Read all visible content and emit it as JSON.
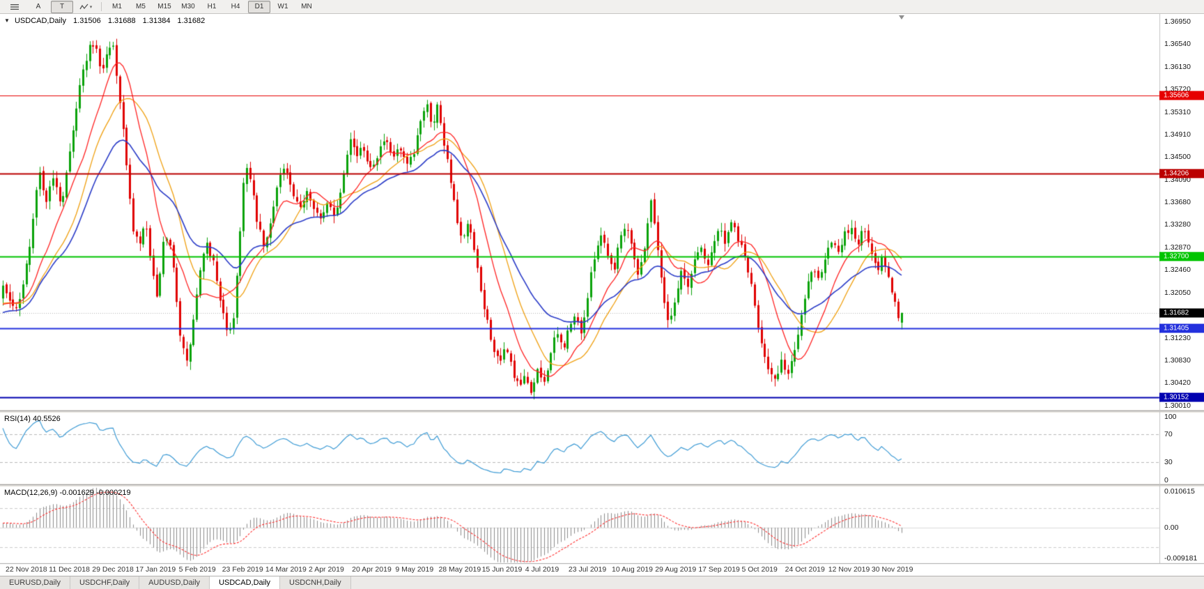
{
  "toolbar": {
    "icons": [
      {
        "name": "menu-icon",
        "glyph": "≡"
      },
      {
        "name": "polyline-tool-icon",
        "glyph": "⌁"
      },
      {
        "name": "dropdown-arrow-icon",
        "glyph": "▾"
      }
    ],
    "buttons": [
      {
        "label": "A",
        "name": "cursor-tool",
        "pressed": false
      },
      {
        "label": "T",
        "name": "text-tool",
        "pressed": true
      }
    ],
    "timeframes": [
      {
        "label": "M1"
      },
      {
        "label": "M5"
      },
      {
        "label": "M15"
      },
      {
        "label": "M30"
      },
      {
        "label": "H1"
      },
      {
        "label": "H4"
      },
      {
        "label": "D1",
        "active": true
      },
      {
        "label": "W1"
      },
      {
        "label": "MN"
      }
    ]
  },
  "header": {
    "collapse_arrow": "▼",
    "symbol": "USDCAD,Daily",
    "open": "1.31506",
    "high": "1.31688",
    "low": "1.31384",
    "close": "1.31682"
  },
  "tabs": [
    {
      "label": "EURUSD,Daily"
    },
    {
      "label": "USDCHF,Daily"
    },
    {
      "label": "AUDUSD,Daily"
    },
    {
      "label": "USDCAD,Daily",
      "active": true
    },
    {
      "label": "USDCNH,Daily"
    }
  ],
  "chart_data": {
    "type": "candlestick",
    "symbol": "USDCAD",
    "timeframe": "Daily",
    "ohlc_display": {
      "open": 1.31506,
      "high": 1.31688,
      "low": 1.31384,
      "close": 1.31682
    },
    "num_candles": 270,
    "candle_end_frac": 0.78,
    "candle_colors": {
      "up": "#0aa20a",
      "down": "#e00000"
    },
    "y_axis": {
      "range": [
        1.2993,
        1.3706
      ],
      "ticks": [
        "1.36950",
        "1.36540",
        "1.36130",
        "1.35720",
        "1.35310",
        "1.34910",
        "1.34500",
        "1.34090",
        "1.33680",
        "1.33280",
        "1.32870",
        "1.32460",
        "1.32050",
        "1.31640",
        "1.31230",
        "1.30830",
        "1.30420",
        "1.30010"
      ]
    },
    "x_axis": {
      "labels": [
        "22 Nov 2018",
        "11 Dec 2018",
        "29 Dec 2018",
        "17 Jan 2019",
        "5 Feb 2019",
        "23 Feb 2019",
        "14 Mar 2019",
        "2 Apr 2019",
        "20 Apr 2019",
        "9 May 2019",
        "28 May 2019",
        "15 Jun 2019",
        "4 Jul 2019",
        "23 Jul 2019",
        "10 Aug 2019",
        "29 Aug 2019",
        "17 Sep 2019",
        "5 Oct 2019",
        "24 Oct 2019",
        "12 Nov 2019",
        "30 Nov 2019"
      ]
    },
    "horizontal_levels": [
      {
        "value": 1.35606,
        "label": "1.35606",
        "color": "#e60000",
        "width": 1
      },
      {
        "value": 1.34206,
        "label": "1.34206",
        "color": "#bb0000",
        "width": 2
      },
      {
        "value": 1.327,
        "label": "1.32700",
        "color": "#00c400",
        "width": 2
      },
      {
        "value": 1.31405,
        "label": "1.31405",
        "color": "#2330dd",
        "width": 2
      },
      {
        "value": 1.30152,
        "label": "1.30152",
        "color": "#0000b0",
        "width": 2
      }
    ],
    "current_price": {
      "value": 1.31682,
      "label": "1.31682",
      "tag_color": "#000000"
    },
    "moving_averages": [
      {
        "type": "sma",
        "period": 21,
        "color": "#f0a010",
        "width": 1.3,
        "name": "ma-orange"
      },
      {
        "type": "sma",
        "period": 13,
        "color": "#ff2222",
        "width": 1.3,
        "name": "ma-red"
      },
      {
        "type": "ema",
        "period": 34,
        "color": "#2b3cc8",
        "width": 1.6,
        "name": "ma-blue"
      }
    ],
    "indicators": {
      "rsi": {
        "label": "RSI(14) 40.5526",
        "period": 14,
        "value": 40.5526,
        "color": "#3d9bd5",
        "levels": [
          70,
          30
        ],
        "scale_labels": [
          {
            "text": "100",
            "value": 100
          },
          {
            "text": "70",
            "value": 70
          },
          {
            "text": "30",
            "value": 30
          },
          {
            "text": "0",
            "value": 0
          }
        ],
        "range": [
          0,
          100
        ]
      },
      "macd": {
        "label": "MACD(12,26,9) -0.001629 -0.000219",
        "fast": 12,
        "slow": 26,
        "signal": 9,
        "value": -0.001629,
        "signal_value": -0.000219,
        "histogram_color": "#8c8c8c",
        "signal_color": "#ff3030",
        "scale_labels": [
          {
            "text": "0.010615",
            "value": 0.010615
          },
          {
            "text": "0.00",
            "value": 0
          },
          {
            "text": "-0.009181",
            "value": -0.009181
          }
        ],
        "range": [
          -0.009181,
          0.010615
        ],
        "grid_levels": [
          0.005,
          -0.005
        ]
      }
    },
    "price_waypoints": [
      [
        0.0,
        1.3215
      ],
      [
        0.008,
        1.3186
      ],
      [
        0.016,
        1.317
      ],
      [
        0.024,
        1.3232
      ],
      [
        0.033,
        1.333
      ],
      [
        0.04,
        1.3426
      ],
      [
        0.048,
        1.3372
      ],
      [
        0.057,
        1.3416
      ],
      [
        0.065,
        1.3362
      ],
      [
        0.072,
        1.3442
      ],
      [
        0.08,
        1.3522
      ],
      [
        0.088,
        1.36
      ],
      [
        0.096,
        1.3648
      ],
      [
        0.103,
        1.3656
      ],
      [
        0.11,
        1.3598
      ],
      [
        0.116,
        1.3642
      ],
      [
        0.123,
        1.365
      ],
      [
        0.13,
        1.3552
      ],
      [
        0.138,
        1.3432
      ],
      [
        0.145,
        1.3312
      ],
      [
        0.152,
        1.3292
      ],
      [
        0.159,
        1.333
      ],
      [
        0.165,
        1.3252
      ],
      [
        0.171,
        1.3192
      ],
      [
        0.178,
        1.329
      ],
      [
        0.184,
        1.3302
      ],
      [
        0.191,
        1.3232
      ],
      [
        0.197,
        1.3132
      ],
      [
        0.204,
        1.3072
      ],
      [
        0.211,
        1.3142
      ],
      [
        0.218,
        1.3232
      ],
      [
        0.226,
        1.3292
      ],
      [
        0.234,
        1.3262
      ],
      [
        0.242,
        1.3192
      ],
      [
        0.249,
        1.3132
      ],
      [
        0.256,
        1.3152
      ],
      [
        0.263,
        1.3292
      ],
      [
        0.269,
        1.3442
      ],
      [
        0.276,
        1.3402
      ],
      [
        0.283,
        1.3332
      ],
      [
        0.291,
        1.3282
      ],
      [
        0.298,
        1.3332
      ],
      [
        0.306,
        1.3412
      ],
      [
        0.314,
        1.3432
      ],
      [
        0.322,
        1.3382
      ],
      [
        0.33,
        1.3352
      ],
      [
        0.338,
        1.3392
      ],
      [
        0.346,
        1.3362
      ],
      [
        0.354,
        1.3332
      ],
      [
        0.362,
        1.3372
      ],
      [
        0.37,
        1.3342
      ],
      [
        0.378,
        1.3412
      ],
      [
        0.386,
        1.3492
      ],
      [
        0.393,
        1.3452
      ],
      [
        0.401,
        1.3466
      ],
      [
        0.409,
        1.3432
      ],
      [
        0.417,
        1.3456
      ],
      [
        0.425,
        1.3482
      ],
      [
        0.433,
        1.3446
      ],
      [
        0.441,
        1.3466
      ],
      [
        0.449,
        1.3432
      ],
      [
        0.457,
        1.3452
      ],
      [
        0.465,
        1.3522
      ],
      [
        0.472,
        1.355
      ],
      [
        0.478,
        1.3502
      ],
      [
        0.484,
        1.3548
      ],
      [
        0.49,
        1.3482
      ],
      [
        0.497,
        1.3422
      ],
      [
        0.504,
        1.3342
      ],
      [
        0.511,
        1.3292
      ],
      [
        0.518,
        1.3332
      ],
      [
        0.525,
        1.3272
      ],
      [
        0.532,
        1.3202
      ],
      [
        0.539,
        1.3152
      ],
      [
        0.546,
        1.3102
      ],
      [
        0.553,
        1.3072
      ],
      [
        0.56,
        1.3112
      ],
      [
        0.567,
        1.3062
      ],
      [
        0.574,
        1.3032
      ],
      [
        0.581,
        1.3052
      ],
      [
        0.588,
        1.3026
      ],
      [
        0.595,
        1.3062
      ],
      [
        0.602,
        1.3042
      ],
      [
        0.609,
        1.3092
      ],
      [
        0.616,
        1.3132
      ],
      [
        0.623,
        1.3102
      ],
      [
        0.63,
        1.3142
      ],
      [
        0.637,
        1.3162
      ],
      [
        0.644,
        1.3132
      ],
      [
        0.651,
        1.3202
      ],
      [
        0.658,
        1.3272
      ],
      [
        0.665,
        1.3312
      ],
      [
        0.672,
        1.3282
      ],
      [
        0.679,
        1.3242
      ],
      [
        0.686,
        1.3302
      ],
      [
        0.693,
        1.3332
      ],
      [
        0.7,
        1.3292
      ],
      [
        0.707,
        1.3232
      ],
      [
        0.714,
        1.3292
      ],
      [
        0.721,
        1.3372
      ],
      [
        0.727,
        1.3312
      ],
      [
        0.734,
        1.3202
      ],
      [
        0.741,
        1.3152
      ],
      [
        0.748,
        1.3192
      ],
      [
        0.755,
        1.3246
      ],
      [
        0.762,
        1.3212
      ],
      [
        0.769,
        1.3262
      ],
      [
        0.776,
        1.3292
      ],
      [
        0.783,
        1.3252
      ],
      [
        0.79,
        1.3292
      ],
      [
        0.797,
        1.3322
      ],
      [
        0.804,
        1.3292
      ],
      [
        0.811,
        1.3332
      ],
      [
        0.818,
        1.3302
      ],
      [
        0.825,
        1.3272
      ],
      [
        0.832,
        1.3222
      ],
      [
        0.839,
        1.3152
      ],
      [
        0.846,
        1.3102
      ],
      [
        0.853,
        1.3062
      ],
      [
        0.86,
        1.3042
      ],
      [
        0.867,
        1.3082
      ],
      [
        0.874,
        1.3056
      ],
      [
        0.881,
        1.3102
      ],
      [
        0.888,
        1.3162
      ],
      [
        0.895,
        1.3222
      ],
      [
        0.902,
        1.3252
      ],
      [
        0.909,
        1.3232
      ],
      [
        0.916,
        1.3282
      ],
      [
        0.923,
        1.3302
      ],
      [
        0.93,
        1.3272
      ],
      [
        0.937,
        1.3312
      ],
      [
        0.944,
        1.3322
      ],
      [
        0.951,
        1.3292
      ],
      [
        0.958,
        1.3322
      ],
      [
        0.965,
        1.3282
      ],
      [
        0.972,
        1.3242
      ],
      [
        0.979,
        1.3272
      ],
      [
        0.986,
        1.3225
      ],
      [
        0.993,
        1.3185
      ],
      [
        0.997,
        1.3152
      ],
      [
        1.0,
        1.3168
      ]
    ]
  }
}
